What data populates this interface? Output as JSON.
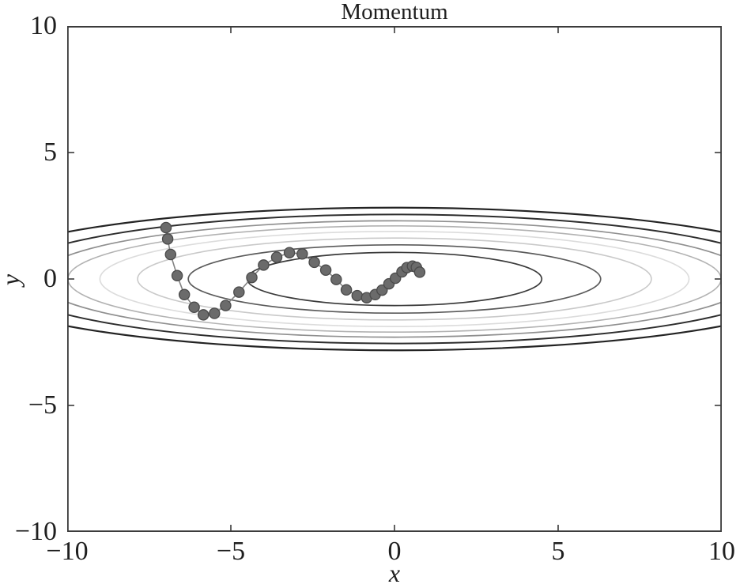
{
  "title": "Momentum",
  "axes": {
    "frame_color": "#3a3a3a",
    "tick_color": "#3a3a3a"
  },
  "chart_data": {
    "type": "line",
    "title": "Momentum",
    "xlabel": "x",
    "ylabel": "y",
    "xlim": [
      -10,
      10
    ],
    "ylim": [
      -10,
      10
    ],
    "grid": false,
    "legend": null,
    "x_ticks": [
      -10,
      -5,
      0,
      5,
      10
    ],
    "y_ticks": [
      10,
      5,
      0,
      -5,
      -10
    ],
    "x_tick_labels": [
      "−10",
      "−5",
      "0",
      "5",
      "10"
    ],
    "y_tick_labels": [
      "10",
      "5",
      "0",
      "−5",
      "−10"
    ],
    "tick_length": 9,
    "contours": {
      "description": "elliptical level sets of an elongated quadratic bowl centered at the origin",
      "center": [
        0,
        0
      ],
      "ellipses": [
        {
          "a": 4.5,
          "b": 1.05,
          "color": "#3a3a3a",
          "width": 1.7
        },
        {
          "a": 6.3,
          "b": 1.35,
          "color": "#5a5a5a",
          "width": 1.7
        },
        {
          "a": 7.85,
          "b": 1.62,
          "color": "#c9c9c9",
          "width": 1.6
        },
        {
          "a": 9.0,
          "b": 1.88,
          "color": "#dcdcdc",
          "width": 1.6
        },
        {
          "a": 9.98,
          "b": 2.1,
          "color": "#b2b2b2",
          "width": 1.6
        },
        {
          "a": 10.9,
          "b": 2.3,
          "color": "#8f8f8f",
          "width": 1.7
        },
        {
          "a": 12.0,
          "b": 2.55,
          "color": "#2d2d2d",
          "width": 2.0
        },
        {
          "a": 13.3,
          "b": 2.82,
          "color": "#232323",
          "width": 2.2
        }
      ]
    },
    "trajectory": {
      "name": "momentum optimizer path",
      "line_color": "#828282",
      "line_width": 1.6,
      "marker_color": "#6b6b6b",
      "marker_edge": "#4a4a4a",
      "marker_radius": 6.6,
      "points": [
        [
          -6.98,
          2.03
        ],
        [
          -6.93,
          1.58
        ],
        [
          -6.84,
          0.97
        ],
        [
          -6.64,
          0.13
        ],
        [
          -6.42,
          -0.62
        ],
        [
          -6.12,
          -1.12
        ],
        [
          -5.84,
          -1.42
        ],
        [
          -5.5,
          -1.36
        ],
        [
          -5.16,
          -1.05
        ],
        [
          -4.75,
          -0.52
        ],
        [
          -4.36,
          0.06
        ],
        [
          -4.0,
          0.55
        ],
        [
          -3.6,
          0.86
        ],
        [
          -3.21,
          1.04
        ],
        [
          -2.82,
          0.99
        ],
        [
          -2.45,
          0.66
        ],
        [
          -2.1,
          0.35
        ],
        [
          -1.78,
          -0.02
        ],
        [
          -1.47,
          -0.43
        ],
        [
          -1.14,
          -0.66
        ],
        [
          -0.85,
          -0.74
        ],
        [
          -0.59,
          -0.62
        ],
        [
          -0.38,
          -0.44
        ],
        [
          -0.17,
          -0.19
        ],
        [
          0.03,
          0.03
        ],
        [
          0.23,
          0.28
        ],
        [
          0.38,
          0.45
        ],
        [
          0.55,
          0.51
        ],
        [
          0.67,
          0.46
        ],
        [
          0.77,
          0.27
        ]
      ]
    }
  }
}
